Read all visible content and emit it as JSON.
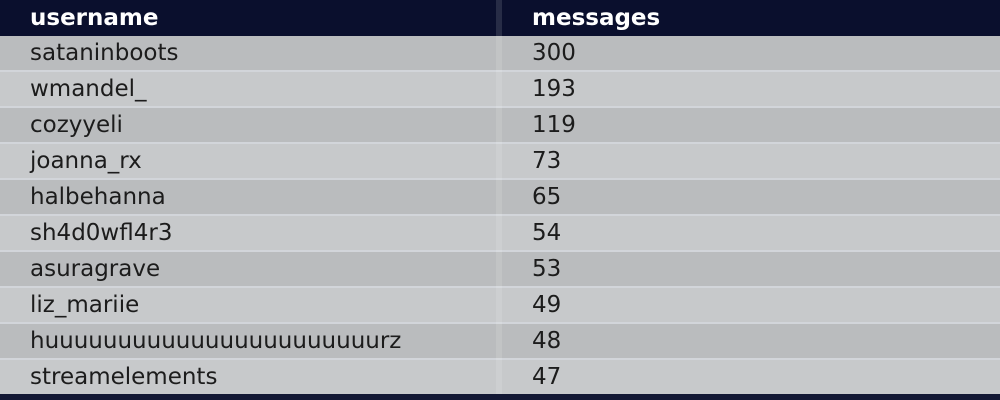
{
  "table": {
    "header": {
      "username_label": "username",
      "messages_label": "messages"
    },
    "rows": [
      {
        "username": "sataninboots",
        "messages": "300"
      },
      {
        "username": "wmandel_",
        "messages": "193"
      },
      {
        "username": "cozyyeli",
        "messages": "119"
      },
      {
        "username": "joanna_rx",
        "messages": "73"
      },
      {
        "username": "halbehanna",
        "messages": "65"
      },
      {
        "username": "sh4d0wfl4r3",
        "messages": "54"
      },
      {
        "username": "asuragrave",
        "messages": "53"
      },
      {
        "username": "liz_mariie",
        "messages": "49"
      },
      {
        "username": "huuuuuuuuuuuuuuuuuuuuuuurz",
        "messages": "48"
      },
      {
        "username": "streamelements",
        "messages": "47"
      }
    ]
  },
  "colors": {
    "header_bg": "#0a0f2d",
    "page_bg": "#131834",
    "row_odd": "#babcbe",
    "row_even": "#c7c9cb",
    "row_separator": "#d2d5da",
    "header_text": "#ffffff",
    "cell_text": "#1c1c1c"
  }
}
